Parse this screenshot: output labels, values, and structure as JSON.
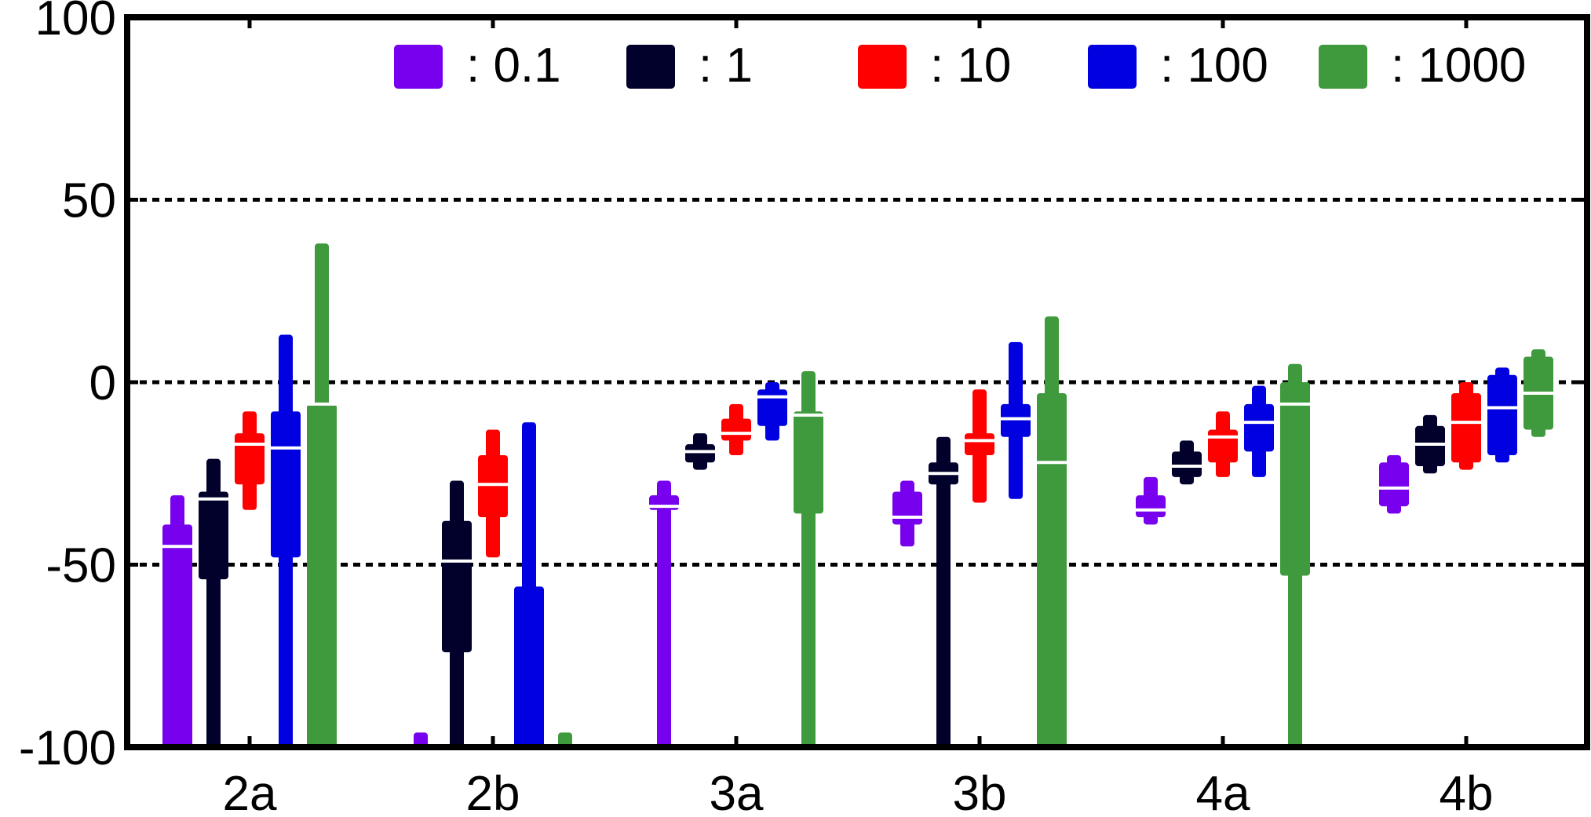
{
  "chart_data": {
    "type": "box",
    "title": "",
    "xlabel": "",
    "ylabel": "",
    "ylim": [
      -100,
      100
    ],
    "yticks": [
      100,
      50,
      0,
      -50,
      -100
    ],
    "ytick_labels": [
      "100",
      "50",
      "0",
      "-50",
      "-100"
    ],
    "grid": "horizontal dashed at 50, 0, -50",
    "legend_position": "top",
    "categories": [
      "2a",
      "2b",
      "3a",
      "3b",
      "4a",
      "4b"
    ],
    "series": [
      {
        "name": ": 0.1",
        "color": "#7700ee",
        "boxes": [
          {
            "whisker_low": -100,
            "q1": -100,
            "median": -45,
            "q3": -39,
            "whisker_high": -31
          },
          {
            "whisker_low": -100,
            "q1": -100,
            "median": -100,
            "q3": -100,
            "whisker_high": -96
          },
          {
            "whisker_low": -100,
            "q1": -35,
            "median": -34,
            "q3": -31,
            "whisker_high": -27
          },
          {
            "whisker_low": -45,
            "q1": -39,
            "median": -37,
            "q3": -30,
            "whisker_high": -27
          },
          {
            "whisker_low": -39,
            "q1": -37,
            "median": -35,
            "q3": -31,
            "whisker_high": -26
          },
          {
            "whisker_low": -36,
            "q1": -34,
            "median": -29,
            "q3": -22,
            "whisker_high": -20
          }
        ]
      },
      {
        "name": ": 1",
        "color": "#02012b",
        "boxes": [
          {
            "whisker_low": -100,
            "q1": -54,
            "median": -32,
            "q3": -30,
            "whisker_high": -21
          },
          {
            "whisker_low": -100,
            "q1": -74,
            "median": -49,
            "q3": -38,
            "whisker_high": -27
          },
          {
            "whisker_low": -24,
            "q1": -22,
            "median": -19,
            "q3": -17,
            "whisker_high": -14
          },
          {
            "whisker_low": -100,
            "q1": -28,
            "median": -25,
            "q3": -22,
            "whisker_high": -15
          },
          {
            "whisker_low": -28,
            "q1": -26,
            "median": -23,
            "q3": -19,
            "whisker_high": -16
          },
          {
            "whisker_low": -25,
            "q1": -23,
            "median": -17,
            "q3": -12,
            "whisker_high": -9
          }
        ]
      },
      {
        "name": ": 10",
        "color": "#ff0000",
        "boxes": [
          {
            "whisker_low": -35,
            "q1": -28,
            "median": -17,
            "q3": -14,
            "whisker_high": -8
          },
          {
            "whisker_low": -48,
            "q1": -37,
            "median": -28,
            "q3": -20,
            "whisker_high": -13
          },
          {
            "whisker_low": -20,
            "q1": -16,
            "median": -14,
            "q3": -10,
            "whisker_high": -6
          },
          {
            "whisker_low": -33,
            "q1": -20,
            "median": -16,
            "q3": -14,
            "whisker_high": -2
          },
          {
            "whisker_low": -26,
            "q1": -22,
            "median": -15,
            "q3": -13,
            "whisker_high": -8
          },
          {
            "whisker_low": -24,
            "q1": -22,
            "median": -11,
            "q3": -3,
            "whisker_high": 0
          }
        ]
      },
      {
        "name": ": 100",
        "color": "#0000e0",
        "boxes": [
          {
            "whisker_low": -100,
            "q1": -48,
            "median": -18,
            "q3": -8,
            "whisker_high": 13
          },
          {
            "whisker_low": -100,
            "q1": -100,
            "median": -100,
            "q3": -56,
            "whisker_high": -11
          },
          {
            "whisker_low": -16,
            "q1": -12,
            "median": -4,
            "q3": -2,
            "whisker_high": 0
          },
          {
            "whisker_low": -32,
            "q1": -15,
            "median": -10,
            "q3": -6,
            "whisker_high": 11
          },
          {
            "whisker_low": -26,
            "q1": -19,
            "median": -11,
            "q3": -6,
            "whisker_high": -1
          },
          {
            "whisker_low": -22,
            "q1": -20,
            "median": -7,
            "q3": 2,
            "whisker_high": 4
          }
        ]
      },
      {
        "name": ": 1000",
        "color": "#3e9a3c",
        "boxes": [
          {
            "whisker_low": -100,
            "q1": -100,
            "median": -6,
            "q3": -6,
            "whisker_high": 38
          },
          {
            "whisker_low": -100,
            "q1": -100,
            "median": -100,
            "q3": -100,
            "whisker_high": -96
          },
          {
            "whisker_low": -100,
            "q1": -36,
            "median": -9,
            "q3": -8,
            "whisker_high": 3
          },
          {
            "whisker_low": -100,
            "q1": -100,
            "median": -22,
            "q3": -3,
            "whisker_high": 18
          },
          {
            "whisker_low": -100,
            "q1": -53,
            "median": -6,
            "q3": 0,
            "whisker_high": 5
          },
          {
            "whisker_low": -15,
            "q1": -13,
            "median": -3,
            "q3": 7,
            "whisker_high": 9
          }
        ]
      }
    ]
  }
}
